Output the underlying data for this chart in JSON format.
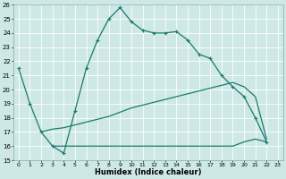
{
  "xlabel": "Humidex (Indice chaleur)",
  "bg_color": "#cde8e5",
  "grid_color": "#b0d5d0",
  "line_color": "#1a7a6e",
  "xlim": [
    -0.5,
    23.5
  ],
  "ylim": [
    15,
    26
  ],
  "xticks": [
    0,
    1,
    2,
    3,
    4,
    5,
    6,
    7,
    8,
    9,
    10,
    11,
    12,
    13,
    14,
    15,
    16,
    17,
    18,
    19,
    20,
    21,
    22,
    23
  ],
  "yticks": [
    15,
    16,
    17,
    18,
    19,
    20,
    21,
    22,
    23,
    24,
    25,
    26
  ],
  "line1_x": [
    0,
    1,
    2,
    3,
    4,
    5,
    6,
    7,
    8,
    9,
    10,
    11,
    12,
    13,
    14,
    15,
    16,
    17,
    18,
    19,
    20,
    21,
    22
  ],
  "line1_y": [
    21.5,
    19.0,
    17.0,
    16.0,
    15.5,
    18.5,
    21.5,
    23.5,
    25.0,
    25.8,
    24.8,
    24.2,
    24.0,
    24.0,
    24.1,
    23.5,
    22.5,
    22.2,
    21.0,
    20.2,
    19.5,
    18.0,
    16.3
  ],
  "line2_x": [
    2,
    3,
    4,
    5,
    6,
    7,
    8,
    9,
    10,
    11,
    12,
    13,
    14,
    15,
    16,
    17,
    18,
    19,
    20,
    21,
    22
  ],
  "line2_y": [
    17.0,
    17.2,
    17.3,
    17.5,
    17.7,
    17.9,
    18.1,
    18.4,
    18.7,
    18.9,
    19.1,
    19.3,
    19.5,
    19.7,
    19.9,
    20.1,
    20.3,
    20.5,
    20.2,
    19.5,
    16.5
  ],
  "line3_x": [
    3,
    4,
    5,
    6,
    7,
    8,
    9,
    10,
    11,
    12,
    13,
    14,
    15,
    16,
    17,
    18,
    19,
    20,
    21,
    22
  ],
  "line3_y": [
    16.0,
    16.0,
    16.0,
    16.0,
    16.0,
    16.0,
    16.0,
    16.0,
    16.0,
    16.0,
    16.0,
    16.0,
    16.0,
    16.0,
    16.0,
    16.0,
    16.0,
    16.3,
    16.5,
    16.3
  ]
}
